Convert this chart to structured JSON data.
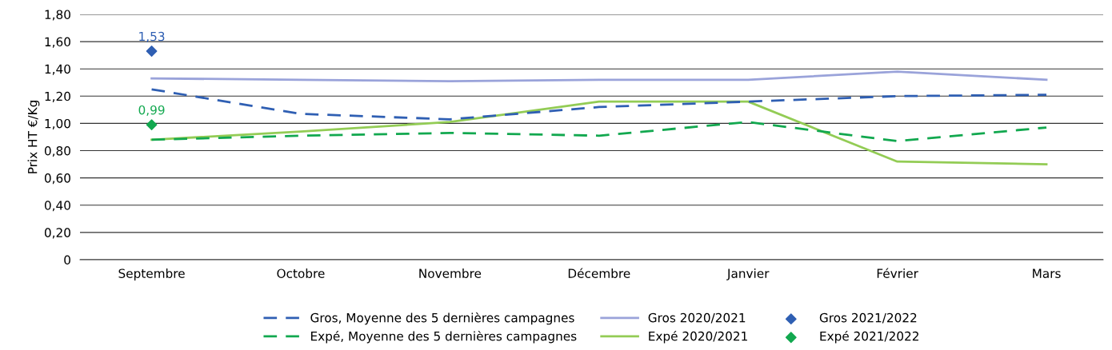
{
  "chart_data": {
    "type": "line",
    "ylabel": "Prix HT €/Kg",
    "categories": [
      "Septembre",
      "Octobre",
      "Novembre",
      "Décembre",
      "Janvier",
      "Février",
      "Mars"
    ],
    "ylim": [
      0,
      1.8
    ],
    "yticks": [
      0,
      {
        "value": 0.2,
        "label": "0,20"
      },
      {
        "value": 0.4,
        "label": "0,40"
      },
      {
        "value": 0.6,
        "label": "0,60"
      },
      {
        "value": 0.8,
        "label": "0,80"
      },
      {
        "value": 1.0,
        "label": "1,00"
      },
      {
        "value": 1.2,
        "label": "1,20"
      },
      {
        "value": 1.4,
        "label": "1,40"
      },
      {
        "value": 1.6,
        "label": "1,60"
      },
      {
        "value": 1.8,
        "label": "1,80"
      }
    ],
    "grid": "y",
    "legend": "bottom",
    "series": [
      {
        "name": "Gros, Moyenne des 5 dernières campagnes",
        "line_style": "dashed",
        "marker": "none",
        "color": "#2f5fb3",
        "values": [
          1.25,
          1.07,
          1.03,
          1.12,
          1.16,
          1.2,
          1.21
        ]
      },
      {
        "name": "Expé, Moyenne des 5 dernières campagnes",
        "line_style": "dashed",
        "marker": "none",
        "color": "#12a84f",
        "values": [
          0.88,
          0.91,
          0.93,
          0.91,
          1.01,
          0.87,
          0.97
        ]
      },
      {
        "name": "Gros 2020/2021",
        "line_style": "solid",
        "marker": "none",
        "color": "#9aa3da",
        "values": [
          1.33,
          1.32,
          1.31,
          1.32,
          1.32,
          1.38,
          1.32
        ]
      },
      {
        "name": "Expé 2020/2021",
        "line_style": "solid",
        "marker": "none",
        "color": "#93cc55",
        "values": [
          0.88,
          0.94,
          1.01,
          1.16,
          1.16,
          0.72,
          0.7
        ]
      },
      {
        "name": "Gros 2021/2022",
        "type": "scatter",
        "marker": "diamond",
        "color": "#2f5fb3",
        "values": [
          1.53,
          null,
          null,
          null,
          null,
          null,
          null
        ],
        "value_labels": [
          "1,53",
          null,
          null,
          null,
          null,
          null,
          null
        ]
      },
      {
        "name": "Expé 2021/2022",
        "type": "scatter",
        "marker": "diamond",
        "color": "#12a84f",
        "values": [
          0.99,
          null,
          null,
          null,
          null,
          null,
          null
        ],
        "value_labels": [
          "0,99",
          null,
          null,
          null,
          null,
          null,
          null
        ]
      }
    ]
  }
}
